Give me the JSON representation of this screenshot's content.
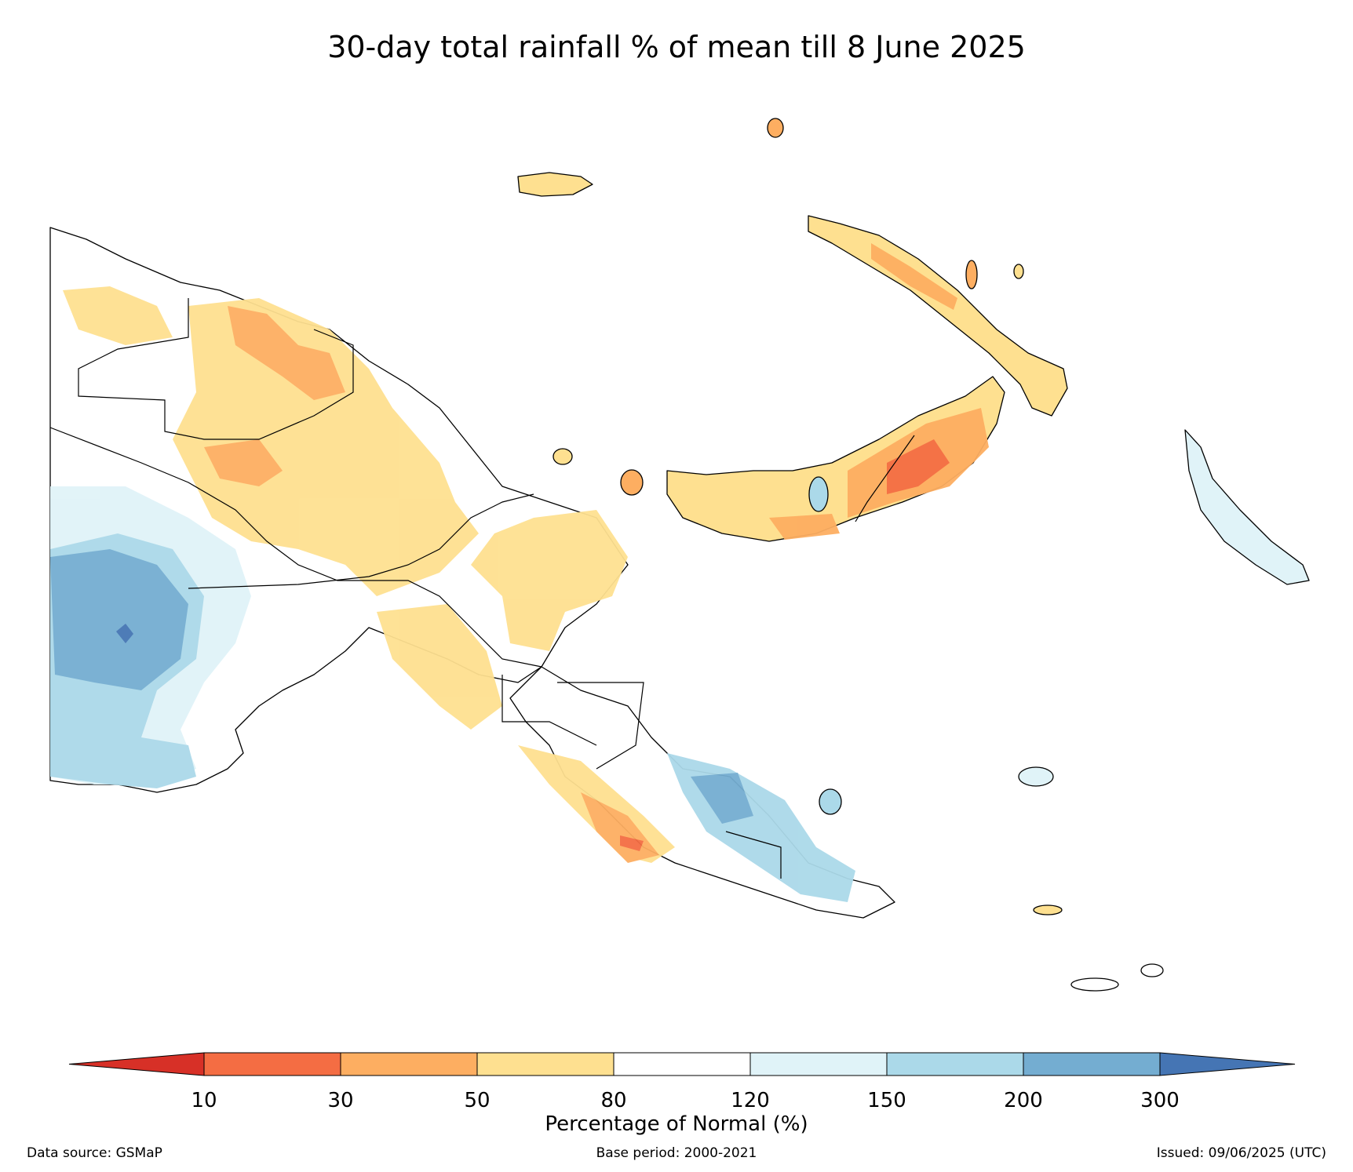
{
  "title": "30-day total rainfall % of mean till 8 June 2025",
  "legend": {
    "title": "Percentage of Normal (%)",
    "ticks": [
      "10",
      "30",
      "50",
      "80",
      "120",
      "150",
      "200",
      "300"
    ],
    "colors": {
      "below_10": "#d73027",
      "c10_30": "#f46d43",
      "c30_50": "#fdae61",
      "c50_80": "#fee090",
      "c80_120": "#ffffff",
      "c120_150": "#e0f3f8",
      "c150_200": "#abd9e9",
      "c200_300": "#74add1",
      "above_300": "#4575b4"
    }
  },
  "footer": {
    "source": "Data source: GSMaP",
    "base_period": "Base period: 2000-2021",
    "issued": "Issued: 09/06/2025 (UTC)"
  }
}
